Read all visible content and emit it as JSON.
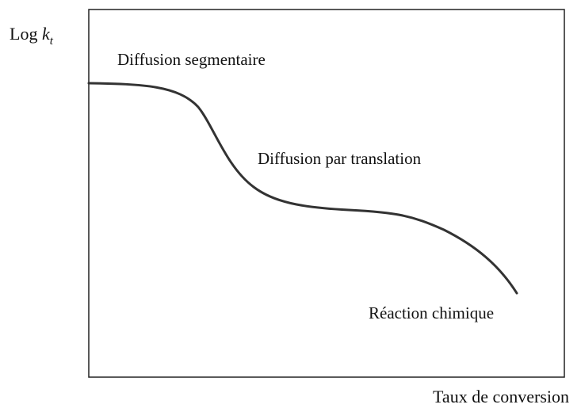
{
  "axes": {
    "y_label": {
      "base": "Log",
      "symbol": "k",
      "subscript": "t"
    },
    "x_label": "Taux de conversion"
  },
  "regions": [
    "Diffusion segmentaire",
    "Diffusion par translation",
    "Réaction chimique"
  ]
}
